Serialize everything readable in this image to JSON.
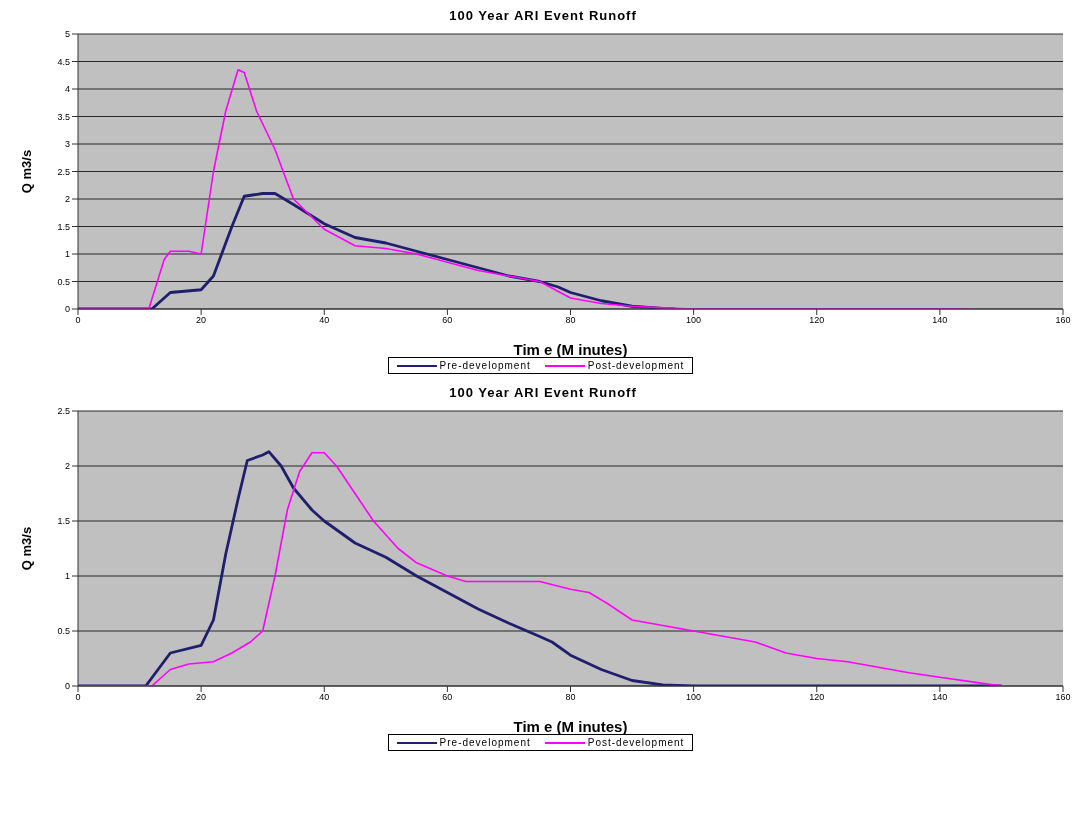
{
  "chart_data": [
    {
      "type": "line",
      "title": "100 Year ARI Event Runoff",
      "xlabel": "Tim e  (M inutes)",
      "ylabel": "Q m3/s",
      "xlim": [
        0,
        160
      ],
      "xticks": [
        0,
        20,
        40,
        60,
        80,
        100,
        120,
        140,
        160
      ],
      "ylim": [
        0,
        5
      ],
      "yticks": [
        0,
        0.5,
        1,
        1.5,
        2,
        2.5,
        3,
        3.5,
        4,
        4.5,
        5
      ],
      "grid": "y",
      "legend": "bottom",
      "marker": "none",
      "line_style": "solid",
      "series": [
        {
          "name": "Pre-development",
          "color": "#1f1f6e",
          "x": [
            0,
            12,
            15,
            20,
            22,
            25,
            27,
            30,
            32,
            35,
            40,
            45,
            50,
            55,
            60,
            65,
            70,
            75,
            78,
            80,
            85,
            90,
            95,
            97
          ],
          "values": [
            0,
            0,
            0.3,
            0.35,
            0.6,
            1.5,
            2.05,
            2.1,
            2.1,
            1.9,
            1.55,
            1.3,
            1.2,
            1.05,
            0.9,
            0.75,
            0.6,
            0.5,
            0.4,
            0.3,
            0.15,
            0.05,
            0.01,
            0
          ]
        },
        {
          "name": "Post-development",
          "color": "#ff00ff",
          "x": [
            0,
            11.5,
            14,
            15,
            18,
            20,
            22,
            24,
            26,
            27,
            29,
            32,
            35,
            40,
            45,
            50,
            55,
            60,
            65,
            70,
            75,
            80,
            85,
            90,
            95,
            100,
            145
          ],
          "values": [
            0,
            0,
            0.9,
            1.05,
            1.05,
            1,
            2.5,
            3.6,
            4.35,
            4.3,
            3.6,
            2.9,
            2,
            1.45,
            1.15,
            1.1,
            1,
            0.85,
            0.7,
            0.6,
            0.5,
            0.2,
            0.1,
            0.05,
            0.02,
            0,
            0
          ]
        }
      ]
    },
    {
      "type": "line",
      "title": "100 Year ARI Event Runoff",
      "xlabel": "Tim e  (M inutes)",
      "ylabel": "Q m3/s",
      "xlim": [
        0,
        160
      ],
      "xticks": [
        0,
        20,
        40,
        60,
        80,
        100,
        120,
        140,
        160
      ],
      "ylim": [
        0,
        2.5
      ],
      "yticks": [
        0,
        0.5,
        1,
        1.5,
        2,
        2.5
      ],
      "grid": "y",
      "legend": "bottom",
      "marker": "none",
      "line_style": "solid",
      "series": [
        {
          "name": "Pre-development",
          "color": "#1f1f6e",
          "x": [
            0,
            11,
            15,
            20,
            22,
            24,
            26,
            27.5,
            30,
            31,
            33,
            35,
            38,
            40,
            45,
            50,
            55,
            60,
            65,
            70,
            75,
            77,
            80,
            85,
            90,
            95,
            100,
            150
          ],
          "values": [
            0,
            0,
            0.3,
            0.37,
            0.6,
            1.2,
            1.7,
            2.05,
            2.1,
            2.13,
            2,
            1.8,
            1.6,
            1.5,
            1.3,
            1.17,
            1,
            0.85,
            0.7,
            0.57,
            0.45,
            0.4,
            0.28,
            0.15,
            0.05,
            0.01,
            0,
            0
          ]
        },
        {
          "name": "Post-development",
          "color": "#ff00ff",
          "x": [
            0,
            12,
            15,
            18,
            22,
            25,
            28,
            30,
            32,
            34,
            36,
            38,
            40,
            42,
            45,
            48,
            52,
            55,
            60,
            63,
            70,
            75,
            80,
            83,
            86,
            90,
            95,
            100,
            105,
            110,
            115,
            120,
            125,
            130,
            135,
            140,
            145,
            150
          ],
          "values": [
            0,
            0,
            0.15,
            0.2,
            0.22,
            0.3,
            0.4,
            0.5,
            1,
            1.6,
            1.95,
            2.12,
            2.12,
            2,
            1.75,
            1.5,
            1.25,
            1.12,
            1,
            0.95,
            0.95,
            0.95,
            0.88,
            0.85,
            0.75,
            0.6,
            0.55,
            0.5,
            0.45,
            0.4,
            0.3,
            0.25,
            0.22,
            0.17,
            0.12,
            0.08,
            0.04,
            0
          ]
        }
      ]
    }
  ]
}
